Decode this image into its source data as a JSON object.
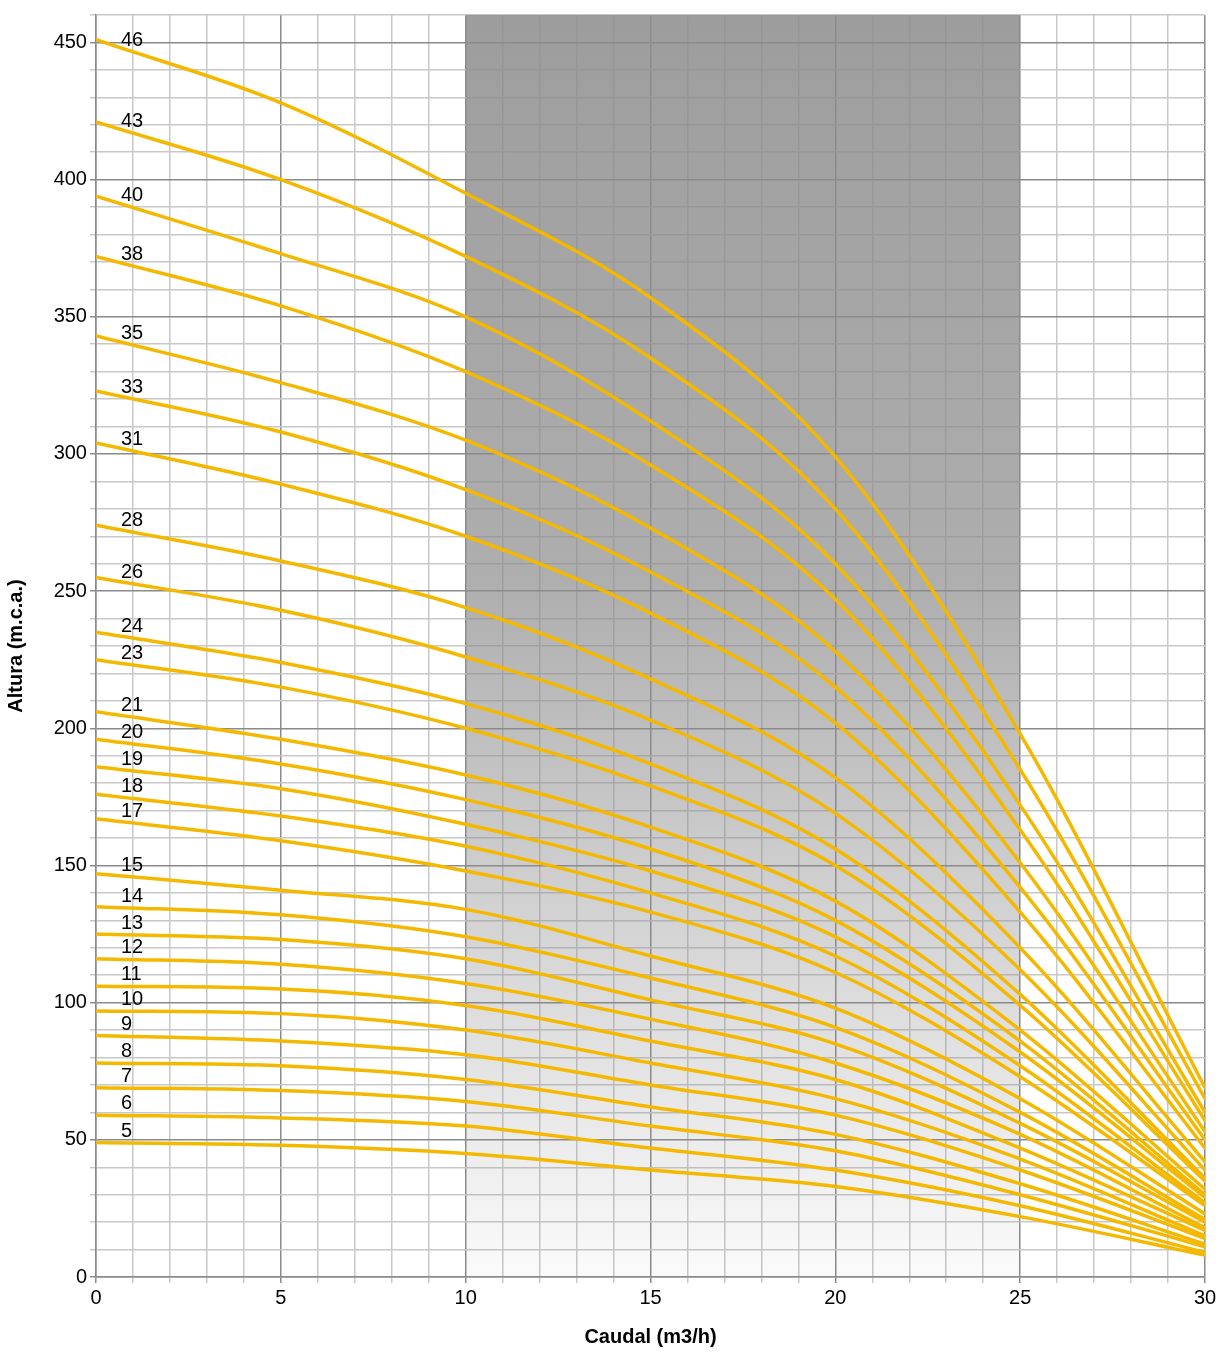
{
  "chart_data": {
    "type": "line",
    "xlabel": "Caudal (m3/h)",
    "ylabel": "Altura (m.c.a.)",
    "x": [
      0,
      5,
      10,
      15,
      20,
      25,
      30
    ],
    "xlim": [
      0,
      30
    ],
    "xticks": [
      0,
      {
        "value": 1,
        "label": null
      },
      {
        "value": 2,
        "label": null
      },
      {
        "value": 3,
        "label": null
      },
      {
        "value": 4,
        "label": null
      },
      5,
      {
        "value": 6,
        "label": null
      },
      {
        "value": 7,
        "label": null
      },
      {
        "value": 8,
        "label": null
      },
      {
        "value": 9,
        "label": null
      },
      10,
      {
        "value": 11,
        "label": null
      },
      {
        "value": 12,
        "label": null
      },
      {
        "value": 13,
        "label": null
      },
      {
        "value": 14,
        "label": null
      },
      15,
      {
        "value": 16,
        "label": null
      },
      {
        "value": 17,
        "label": null
      },
      {
        "value": 18,
        "label": null
      },
      {
        "value": 19,
        "label": null
      },
      20,
      {
        "value": 21,
        "label": null
      },
      {
        "value": 22,
        "label": null
      },
      {
        "value": 23,
        "label": null
      },
      {
        "value": 24,
        "label": null
      },
      25,
      {
        "value": 26,
        "label": null
      },
      {
        "value": 27,
        "label": null
      },
      {
        "value": 28,
        "label": null
      },
      {
        "value": 29,
        "label": null
      },
      30
    ],
    "ylim": [
      0,
      460
    ],
    "yticks": [
      0,
      {
        "value": 10,
        "label": null
      },
      {
        "value": 20,
        "label": null
      },
      {
        "value": 30,
        "label": null
      },
      {
        "value": 40,
        "label": null
      },
      50,
      {
        "value": 60,
        "label": null
      },
      {
        "value": 70,
        "label": null
      },
      {
        "value": 80,
        "label": null
      },
      {
        "value": 90,
        "label": null
      },
      100,
      {
        "value": 110,
        "label": null
      },
      {
        "value": 120,
        "label": null
      },
      {
        "value": 130,
        "label": null
      },
      {
        "value": 140,
        "label": null
      },
      150,
      {
        "value": 160,
        "label": null
      },
      {
        "value": 170,
        "label": null
      },
      {
        "value": 180,
        "label": null
      },
      {
        "value": 190,
        "label": null
      },
      200,
      {
        "value": 210,
        "label": null
      },
      {
        "value": 220,
        "label": null
      },
      {
        "value": 230,
        "label": null
      },
      {
        "value": 240,
        "label": null
      },
      250,
      {
        "value": 260,
        "label": null
      },
      {
        "value": 270,
        "label": null
      },
      {
        "value": 280,
        "label": null
      },
      {
        "value": 290,
        "label": null
      },
      300,
      {
        "value": 310,
        "label": null
      },
      {
        "value": 320,
        "label": null
      },
      {
        "value": 330,
        "label": null
      },
      {
        "value": 340,
        "label": null
      },
      350,
      {
        "value": 360,
        "label": null
      },
      {
        "value": 370,
        "label": null
      },
      {
        "value": 380,
        "label": null
      },
      {
        "value": 390,
        "label": null
      },
      400,
      {
        "value": 410,
        "label": null
      },
      {
        "value": 420,
        "label": null
      },
      {
        "value": 430,
        "label": null
      },
      {
        "value": 440,
        "label": null
      },
      450,
      {
        "value": 460,
        "label": null
      }
    ],
    "grid": true,
    "legend": false,
    "marker": "none",
    "line_style": "solid",
    "bands": [
      {
        "axis": "x",
        "from": 10,
        "to": 25,
        "color": "#8c8c8c"
      }
    ],
    "series": [
      {
        "name": "46",
        "color": "#f5b800",
        "values": [
          451,
          428,
          395,
          357,
          299,
          198,
          69
        ]
      },
      {
        "name": "43",
        "color": "#f5b800",
        "values": [
          421,
          400,
          372,
          335,
          280,
          185,
          65
        ]
      },
      {
        "name": "40",
        "color": "#f5b800",
        "values": [
          394,
          373,
          350,
          312,
          260,
          172,
          60
        ]
      },
      {
        "name": "38",
        "color": "#f5b800",
        "values": [
          372,
          354,
          330,
          296,
          247,
          163,
          57
        ]
      },
      {
        "name": "35",
        "color": "#f5b800",
        "values": [
          343,
          326,
          305,
          273,
          228,
          151,
          53
        ]
      },
      {
        "name": "33",
        "color": "#f5b800",
        "values": [
          323,
          308,
          287,
          257,
          215,
          142,
          50
        ]
      },
      {
        "name": "31",
        "color": "#f5b800",
        "values": [
          304,
          289,
          270,
          242,
          202,
          133,
          47
        ]
      },
      {
        "name": "28",
        "color": "#f5b800",
        "values": [
          274,
          261,
          244,
          218,
          182,
          120,
          42
        ]
      },
      {
        "name": "26",
        "color": "#f5b800",
        "values": [
          255,
          243,
          226,
          203,
          169,
          112,
          39
        ]
      },
      {
        "name": "24",
        "color": "#f5b800",
        "values": [
          235,
          224,
          209,
          187,
          156,
          103,
          36
        ]
      },
      {
        "name": "23",
        "color": "#f5b800",
        "values": [
          225,
          215,
          200,
          179,
          150,
          99,
          35
        ]
      },
      {
        "name": "21",
        "color": "#f5b800",
        "values": [
          206,
          196,
          183,
          164,
          137,
          90,
          32
        ]
      },
      {
        "name": "20",
        "color": "#f5b800",
        "values": [
          196,
          187,
          174,
          156,
          130,
          86,
          30
        ]
      },
      {
        "name": "19",
        "color": "#f5b800",
        "values": [
          186,
          178,
          165,
          148,
          124,
          82,
          29
        ]
      },
      {
        "name": "18",
        "color": "#f5b800",
        "values": [
          176,
          168,
          157,
          140,
          117,
          77,
          27
        ]
      },
      {
        "name": "17",
        "color": "#f5b800",
        "values": [
          167,
          159,
          148,
          133,
          111,
          73,
          26
        ]
      },
      {
        "name": "15",
        "color": "#f5b800",
        "values": [
          147,
          141,
          134,
          117,
          98,
          65,
          23
        ]
      },
      {
        "name": "14",
        "color": "#f5b800",
        "values": [
          135,
          132,
          124,
          109,
          91,
          60,
          21
        ]
      },
      {
        "name": "13",
        "color": "#f5b800",
        "values": [
          125,
          123,
          116,
          101,
          85,
          56,
          20
        ]
      },
      {
        "name": "12",
        "color": "#f5b800",
        "values": [
          116,
          114,
          107,
          94,
          78,
          52,
          18
        ]
      },
      {
        "name": "11",
        "color": "#f5b800",
        "values": [
          106,
          105,
          99,
          86,
          72,
          47,
          17
        ]
      },
      {
        "name": "10",
        "color": "#f5b800",
        "values": [
          97,
          96,
          90,
          78,
          65,
          43,
          15
        ]
      },
      {
        "name": "9",
        "color": "#f5b800",
        "values": [
          88,
          86,
          81,
          70,
          59,
          39,
          14
        ]
      },
      {
        "name": "8",
        "color": "#f5b800",
        "values": [
          78,
          77,
          72,
          62,
          52,
          34,
          12
        ]
      },
      {
        "name": "7",
        "color": "#f5b800",
        "values": [
          69,
          68,
          64,
          55,
          46,
          30,
          11
        ]
      },
      {
        "name": "6",
        "color": "#f5b800",
        "values": [
          59,
          58,
          55,
          47,
          39,
          26,
          9
        ]
      },
      {
        "name": "5",
        "color": "#f5b800",
        "values": [
          49,
          48,
          45,
          39,
          33,
          22,
          8
        ]
      }
    ]
  }
}
